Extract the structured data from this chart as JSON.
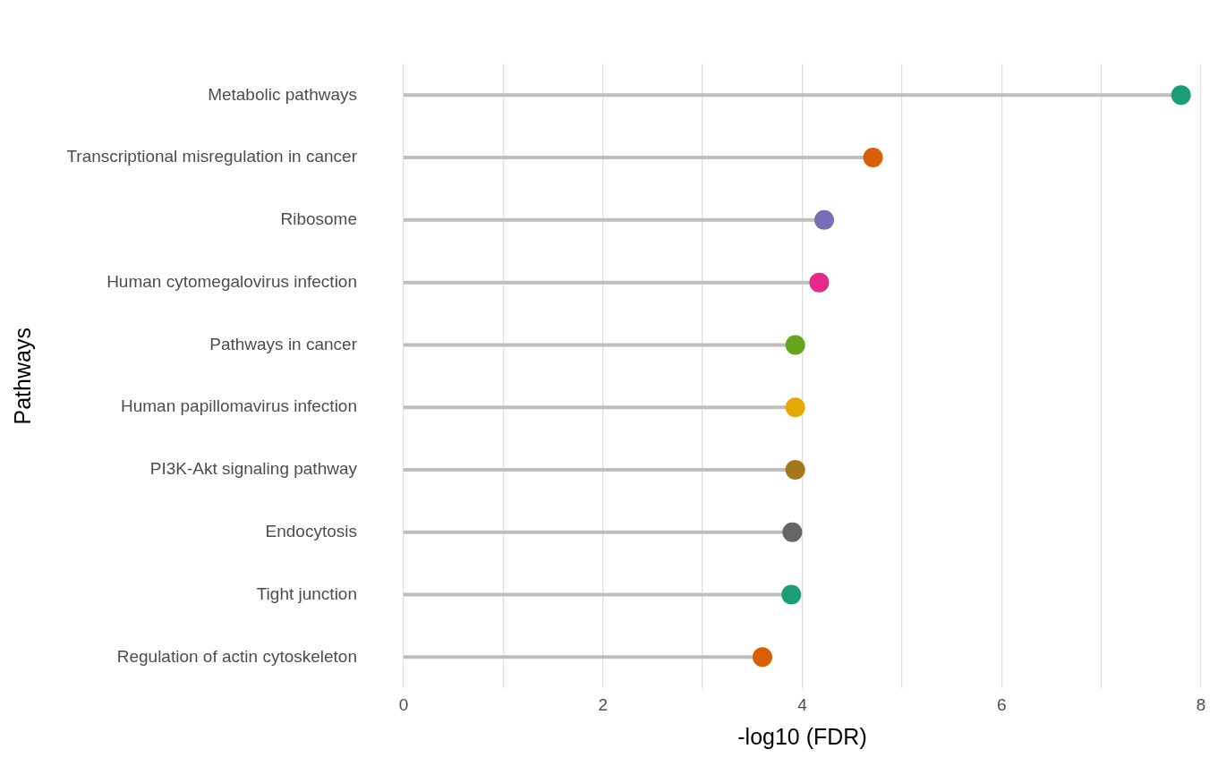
{
  "chart_data": {
    "type": "lollipop",
    "orientation": "horizontal",
    "xlabel": "-log10 (FDR)",
    "ylabel": "Pathways",
    "categories": [
      "Metabolic pathways",
      "Transcriptional misregulation in cancer",
      "Ribosome",
      "Human cytomegalovirus infection",
      "Pathways in cancer",
      "Human papillomavirus infection",
      "PI3K-Akt signaling pathway",
      "Endocytosis",
      "Tight junction",
      "Regulation of actin cytoskeleton"
    ],
    "values": [
      7.8,
      4.71,
      4.22,
      4.17,
      3.93,
      3.93,
      3.93,
      3.9,
      3.89,
      3.6
    ],
    "color": "#bebebe",
    "colors": [
      "#1b9e77",
      "#d95f02",
      "#7570b3",
      "#e7298a",
      "#66a61e",
      "#e6ab02",
      "#a6761d",
      "#666666",
      "#1b9e77",
      "#d95f02"
    ],
    "xlim": [
      0,
      8
    ],
    "xticks": [
      0,
      {
        "value": 1,
        "label": null
      },
      2,
      {
        "value": 3,
        "label": null
      },
      4,
      {
        "value": 5,
        "label": null
      },
      6,
      {
        "value": 7,
        "label": null
      },
      8
    ],
    "grid": "x",
    "legend": false,
    "marker": "circle"
  }
}
